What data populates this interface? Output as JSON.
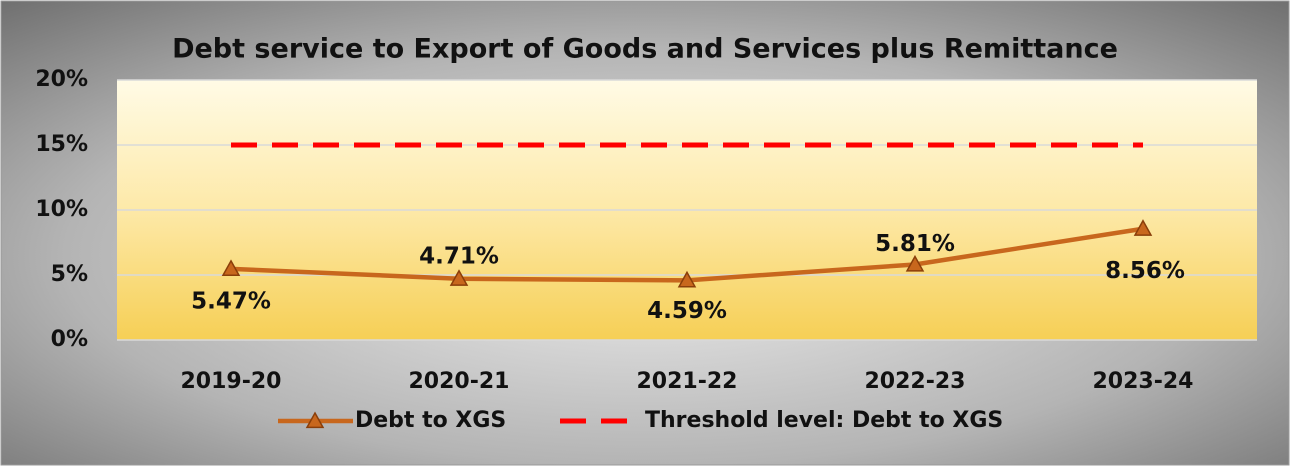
{
  "chart_data": {
    "type": "line",
    "title": "Debt service to Export of Goods and Services plus Remittance",
    "categories": [
      "2019-20",
      "2020-21",
      "2021-22",
      "2022-23",
      "2023-24"
    ],
    "series": [
      {
        "name": "Debt to XGS",
        "color": "#c8671d",
        "marker": "triangle",
        "values": [
          5.47,
          4.71,
          4.59,
          5.81,
          8.56
        ],
        "value_labels": [
          "5.47%",
          "4.71%",
          "4.59%",
          "5.81%",
          "8.56%"
        ]
      },
      {
        "name": "Threshold level: Debt to XGS",
        "color": "#ff0000",
        "dashed": true,
        "values": [
          15,
          15,
          15,
          15,
          15
        ]
      }
    ],
    "ylim": [
      0,
      20
    ],
    "yticks": [
      {
        "value": 0,
        "label": "0%"
      },
      {
        "value": 5,
        "label": "5%"
      },
      {
        "value": 10,
        "label": "10%"
      },
      {
        "value": 15,
        "label": "15%"
      },
      {
        "value": 20,
        "label": "20%"
      }
    ],
    "grid": true,
    "legend": "bottom"
  }
}
